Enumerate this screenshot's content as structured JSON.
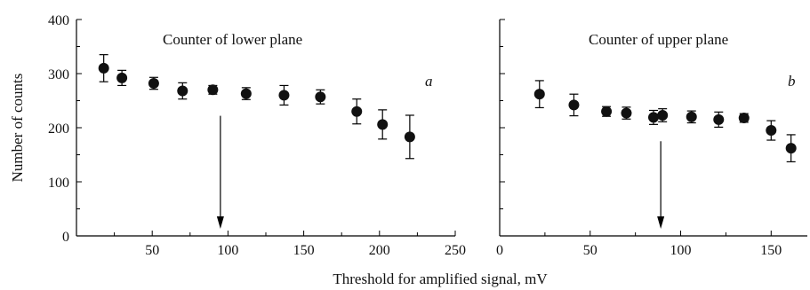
{
  "chart_data": [
    {
      "type": "scatter",
      "panel": "a",
      "title": "Counter of lower plane",
      "panel_label": "a",
      "ylabel": "Number of counts",
      "xlim": [
        0,
        250
      ],
      "ylim": [
        0,
        400
      ],
      "xticks": [
        50,
        100,
        150,
        200,
        250
      ],
      "yticks": [
        0,
        100,
        200,
        300,
        400
      ],
      "ytick_labels": [
        "0",
        "100",
        "200",
        "300",
        "400"
      ],
      "xtick_labels": [
        "50",
        "100",
        "150",
        "200",
        "250"
      ],
      "points": [
        {
          "x": 18,
          "y": 310,
          "err": 25
        },
        {
          "x": 30,
          "y": 292,
          "err": 14
        },
        {
          "x": 51,
          "y": 282,
          "err": 11
        },
        {
          "x": 70,
          "y": 268,
          "err": 15
        },
        {
          "x": 90,
          "y": 270,
          "err": 8
        },
        {
          "x": 112,
          "y": 263,
          "err": 11
        },
        {
          "x": 137,
          "y": 260,
          "err": 18
        },
        {
          "x": 161,
          "y": 257,
          "err": 13
        },
        {
          "x": 185,
          "y": 230,
          "err": 23
        },
        {
          "x": 202,
          "y": 206,
          "err": 27
        },
        {
          "x": 220,
          "y": 183,
          "err": 40
        }
      ],
      "arrow_x": 95
    },
    {
      "type": "scatter",
      "panel": "b",
      "title": "Counter of upper plane",
      "panel_label": "b",
      "xlim": [
        0,
        165
      ],
      "ylim": [
        0,
        400
      ],
      "xticks": [
        0,
        50,
        100,
        150
      ],
      "xtick_labels": [
        "0",
        "50",
        "100",
        "150"
      ],
      "yticks": [
        0,
        100,
        200,
        300,
        400
      ],
      "points": [
        {
          "x": 22,
          "y": 262,
          "err": 25
        },
        {
          "x": 41,
          "y": 242,
          "err": 20
        },
        {
          "x": 59,
          "y": 230,
          "err": 9
        },
        {
          "x": 70,
          "y": 227,
          "err": 11
        },
        {
          "x": 85,
          "y": 219,
          "err": 13
        },
        {
          "x": 90,
          "y": 223,
          "err": 12
        },
        {
          "x": 106,
          "y": 220,
          "err": 11
        },
        {
          "x": 121,
          "y": 215,
          "err": 14
        },
        {
          "x": 135,
          "y": 218,
          "err": 8
        },
        {
          "x": 150,
          "y": 195,
          "err": 18
        },
        {
          "x": 161,
          "y": 162,
          "err": 25
        }
      ],
      "arrow_x": 89
    }
  ],
  "shared": {
    "xlabel": "Threshold for amplified signal, mV"
  }
}
